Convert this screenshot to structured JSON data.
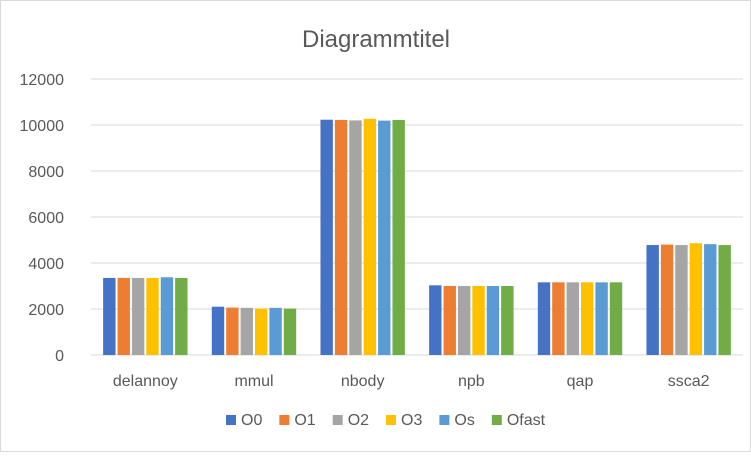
{
  "chart_data": {
    "type": "bar",
    "title": "Diagrammtitel",
    "xlabel": "",
    "ylabel": "",
    "ylim": [
      0,
      12000
    ],
    "yticks": [
      0,
      2000,
      4000,
      6000,
      8000,
      10000,
      12000
    ],
    "categories": [
      "delannoy",
      "mmul",
      "nbody",
      "npb",
      "qap",
      "ssca2"
    ],
    "grid": true,
    "legend_position": "bottom",
    "series": [
      {
        "name": "O0",
        "color": "#4472c4",
        "values": [
          3350,
          2100,
          10230,
          3030,
          3160,
          4780
        ]
      },
      {
        "name": "O1",
        "color": "#ed7d31",
        "values": [
          3350,
          2060,
          10220,
          3000,
          3160,
          4800
        ]
      },
      {
        "name": "O2",
        "color": "#a5a5a5",
        "values": [
          3350,
          2050,
          10200,
          3000,
          3160,
          4780
        ]
      },
      {
        "name": "O3",
        "color": "#ffc000",
        "values": [
          3350,
          2020,
          10270,
          3000,
          3160,
          4860
        ]
      },
      {
        "name": "Os",
        "color": "#5b9bd5",
        "values": [
          3380,
          2050,
          10190,
          3000,
          3160,
          4820
        ]
      },
      {
        "name": "Ofast",
        "color": "#70ad47",
        "values": [
          3350,
          2020,
          10220,
          3000,
          3160,
          4780
        ]
      }
    ]
  }
}
